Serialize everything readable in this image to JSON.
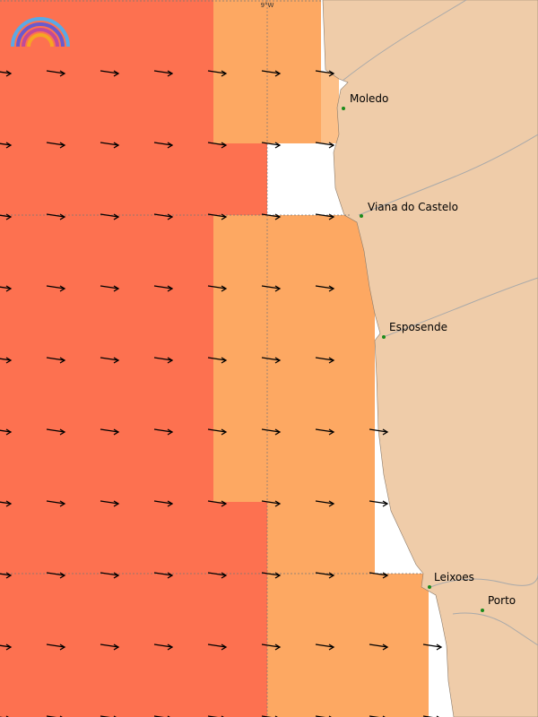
{
  "map": {
    "graticule_label": "9°W",
    "places": [
      {
        "name": "Moledo"
      },
      {
        "name": "Viana do Castelo"
      },
      {
        "name": "Esposende"
      },
      {
        "name": "Leixoes"
      },
      {
        "name": "Porto"
      }
    ]
  }
}
